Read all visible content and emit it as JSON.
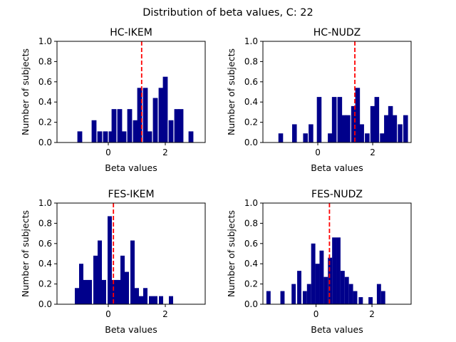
{
  "figure": {
    "suptitle": "Distribution of beta values, C: 22"
  },
  "style": {
    "bar_color": "#00008b",
    "mean_line_color": "#ff0000",
    "axes_color": "#000000",
    "background": "#ffffff"
  },
  "chart_data": [
    {
      "type": "bar",
      "title": "HC-IKEM",
      "xlabel": "Beta values",
      "ylabel": "Number of subjects",
      "xlim": [
        -1.8,
        3.4
      ],
      "ylim": [
        0.0,
        1.0
      ],
      "xticks": [
        0,
        2
      ],
      "yticks": [
        0.0,
        0.2,
        0.4,
        0.6,
        0.8,
        1.0
      ],
      "bar_width": 0.17,
      "bars": [
        {
          "x": -1.0,
          "y": 0.11
        },
        {
          "x": -0.5,
          "y": 0.22
        },
        {
          "x": -0.3,
          "y": 0.11
        },
        {
          "x": -0.1,
          "y": 0.11
        },
        {
          "x": 0.1,
          "y": 0.11
        },
        {
          "x": 0.2,
          "y": 0.33
        },
        {
          "x": 0.4,
          "y": 0.33
        },
        {
          "x": 0.55,
          "y": 0.11
        },
        {
          "x": 0.75,
          "y": 0.33
        },
        {
          "x": 0.95,
          "y": 0.22
        },
        {
          "x": 1.1,
          "y": 0.54
        },
        {
          "x": 1.3,
          "y": 0.54
        },
        {
          "x": 1.45,
          "y": 0.11
        },
        {
          "x": 1.65,
          "y": 0.44
        },
        {
          "x": 1.85,
          "y": 0.54
        },
        {
          "x": 2.0,
          "y": 0.65
        },
        {
          "x": 2.2,
          "y": 0.22
        },
        {
          "x": 2.4,
          "y": 0.33
        },
        {
          "x": 2.55,
          "y": 0.33
        },
        {
          "x": 2.9,
          "y": 0.11
        }
      ],
      "mean_line": 1.17
    },
    {
      "type": "bar",
      "title": "HC-NUDZ",
      "xlabel": "Beta values",
      "ylabel": "Number of subjects",
      "xlim": [
        -2.0,
        3.4
      ],
      "ylim": [
        0.0,
        1.0
      ],
      "xticks": [
        0,
        2
      ],
      "yticks": [
        0.0,
        0.2,
        0.4,
        0.6,
        0.8,
        1.0
      ],
      "bar_width": 0.17,
      "bars": [
        {
          "x": -1.35,
          "y": 0.09
        },
        {
          "x": -0.85,
          "y": 0.18
        },
        {
          "x": -0.45,
          "y": 0.09
        },
        {
          "x": -0.25,
          "y": 0.18
        },
        {
          "x": 0.05,
          "y": 0.45
        },
        {
          "x": 0.45,
          "y": 0.09
        },
        {
          "x": 0.6,
          "y": 0.45
        },
        {
          "x": 0.8,
          "y": 0.45
        },
        {
          "x": 0.95,
          "y": 0.27
        },
        {
          "x": 1.1,
          "y": 0.27
        },
        {
          "x": 1.3,
          "y": 0.36
        },
        {
          "x": 1.45,
          "y": 0.54
        },
        {
          "x": 1.6,
          "y": 0.18
        },
        {
          "x": 1.8,
          "y": 0.09
        },
        {
          "x": 2.0,
          "y": 0.36
        },
        {
          "x": 2.15,
          "y": 0.45
        },
        {
          "x": 2.35,
          "y": 0.09
        },
        {
          "x": 2.5,
          "y": 0.27
        },
        {
          "x": 2.65,
          "y": 0.36
        },
        {
          "x": 2.8,
          "y": 0.27
        },
        {
          "x": 3.0,
          "y": 0.18
        },
        {
          "x": 3.2,
          "y": 0.27
        }
      ],
      "mean_line": 1.35
    },
    {
      "type": "bar",
      "title": "FES-IKEM",
      "xlabel": "Beta values",
      "ylabel": "Number of subjects",
      "xlim": [
        -1.8,
        3.4
      ],
      "ylim": [
        0.0,
        1.0
      ],
      "xticks": [
        0,
        2
      ],
      "yticks": [
        0.0,
        0.2,
        0.4,
        0.6,
        0.8,
        1.0
      ],
      "bar_width": 0.15,
      "bars": [
        {
          "x": -1.1,
          "y": 0.16
        },
        {
          "x": -0.95,
          "y": 0.4
        },
        {
          "x": -0.8,
          "y": 0.24
        },
        {
          "x": -0.65,
          "y": 0.24
        },
        {
          "x": -0.45,
          "y": 0.48
        },
        {
          "x": -0.3,
          "y": 0.63
        },
        {
          "x": -0.15,
          "y": 0.24
        },
        {
          "x": 0.05,
          "y": 0.87
        },
        {
          "x": 0.2,
          "y": 0.24
        },
        {
          "x": 0.35,
          "y": 0.24
        },
        {
          "x": 0.5,
          "y": 0.48
        },
        {
          "x": 0.65,
          "y": 0.32
        },
        {
          "x": 0.85,
          "y": 0.63
        },
        {
          "x": 1.0,
          "y": 0.16
        },
        {
          "x": 1.15,
          "y": 0.08
        },
        {
          "x": 1.3,
          "y": 0.16
        },
        {
          "x": 1.5,
          "y": 0.08
        },
        {
          "x": 1.65,
          "y": 0.08
        },
        {
          "x": 1.85,
          "y": 0.08
        },
        {
          "x": 2.2,
          "y": 0.08
        }
      ],
      "mean_line": 0.18
    },
    {
      "type": "bar",
      "title": "FES-NUDZ",
      "xlabel": "Beta values",
      "ylabel": "Number of subjects",
      "xlim": [
        -1.9,
        3.4
      ],
      "ylim": [
        0.0,
        1.0
      ],
      "xticks": [
        0,
        2
      ],
      "yticks": [
        0.0,
        0.2,
        0.4,
        0.6,
        0.8,
        1.0
      ],
      "bar_width": 0.15,
      "bars": [
        {
          "x": -1.7,
          "y": 0.13
        },
        {
          "x": -1.2,
          "y": 0.13
        },
        {
          "x": -0.8,
          "y": 0.2
        },
        {
          "x": -0.6,
          "y": 0.33
        },
        {
          "x": -0.4,
          "y": 0.13
        },
        {
          "x": -0.25,
          "y": 0.2
        },
        {
          "x": -0.1,
          "y": 0.6
        },
        {
          "x": 0.05,
          "y": 0.4
        },
        {
          "x": 0.2,
          "y": 0.53
        },
        {
          "x": 0.35,
          "y": 0.27
        },
        {
          "x": 0.5,
          "y": 0.46
        },
        {
          "x": 0.65,
          "y": 0.66
        },
        {
          "x": 0.8,
          "y": 0.66
        },
        {
          "x": 0.95,
          "y": 0.33
        },
        {
          "x": 1.1,
          "y": 0.27
        },
        {
          "x": 1.25,
          "y": 0.2
        },
        {
          "x": 1.4,
          "y": 0.13
        },
        {
          "x": 1.6,
          "y": 0.07
        },
        {
          "x": 1.95,
          "y": 0.07
        },
        {
          "x": 2.25,
          "y": 0.2
        },
        {
          "x": 2.4,
          "y": 0.13
        }
      ],
      "mean_line": 0.48
    }
  ]
}
